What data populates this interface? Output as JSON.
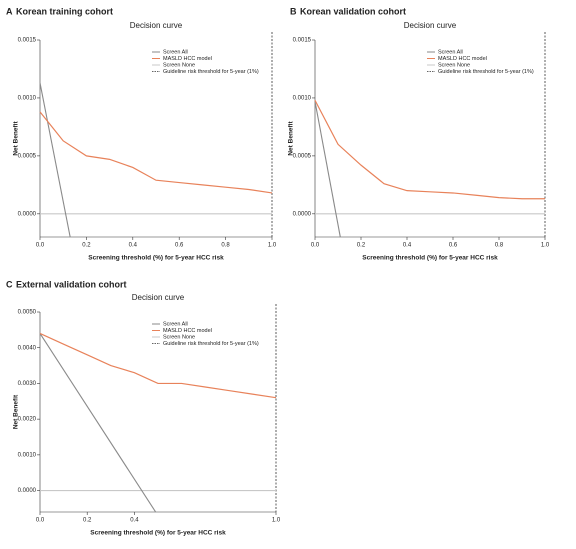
{
  "chart_data": [
    {
      "type": "line",
      "panel": "A",
      "title": "Korean training cohort",
      "subtitle": "Decision curve",
      "x_label": "Screening threshold (%) for 5-year HCC risk",
      "y_label": "Net Benefit",
      "xlim": [
        0,
        1
      ],
      "ylim": [
        -0.0002,
        0.0015
      ],
      "xticks": [
        {
          "value": 0,
          "label": "0.0"
        },
        0.2,
        0.4,
        0.6,
        0.8,
        {
          "value": 1,
          "label": "1.0"
        }
      ],
      "yticks": [
        {
          "value": 0,
          "label": "0.0000"
        },
        {
          "value": 0.0005,
          "label": "0.0005"
        },
        {
          "value": 0.001,
          "label": "0.0010"
        },
        {
          "value": 0.0015,
          "label": "0.0015"
        }
      ],
      "series": [
        {
          "name": "Screen All",
          "color": "#8a8a8a",
          "x": [
            0,
            0.13
          ],
          "values": [
            0.00113,
            -0.0002
          ]
        },
        {
          "name": "MASLD HCC model",
          "color": "#e8825a",
          "x": [
            0,
            0.1,
            0.2,
            0.3,
            0.4,
            0.5,
            0.6,
            0.7,
            0.8,
            0.9,
            1
          ],
          "values": [
            0.00088,
            0.00063,
            0.0005,
            0.00047,
            0.0004,
            0.00029,
            0.00027,
            0.00025,
            0.00023,
            0.00021,
            0.00018
          ]
        },
        {
          "name": "Screen None",
          "color": "#c8c8c8",
          "x": [
            0,
            1
          ],
          "values": [
            0,
            0
          ]
        }
      ],
      "reference_line": {
        "name": "Guideline risk threshold for 5-year (1%)",
        "x": 1,
        "color": "#333333"
      }
    },
    {
      "type": "line",
      "panel": "B",
      "title": "Korean validation cohort",
      "subtitle": "Decision curve",
      "x_label": "Screening threshold (%) for 5-year HCC risk",
      "y_label": "Net Benefit",
      "xlim": [
        0,
        1
      ],
      "ylim": [
        -0.0002,
        0.0015
      ],
      "xticks": [
        {
          "value": 0,
          "label": "0.0"
        },
        0.2,
        0.4,
        0.6,
        0.8,
        {
          "value": 1,
          "label": "1.0"
        }
      ],
      "yticks": [
        {
          "value": 0,
          "label": "0.0000"
        },
        {
          "value": 0.0005,
          "label": "0.0005"
        },
        {
          "value": 0.001,
          "label": "0.0010"
        },
        {
          "value": 0.0015,
          "label": "0.0015"
        }
      ],
      "series": [
        {
          "name": "Screen All",
          "color": "#8a8a8a",
          "x": [
            0,
            0.11
          ],
          "values": [
            0.00097,
            -0.0002
          ]
        },
        {
          "name": "MASLD HCC model",
          "color": "#e8825a",
          "x": [
            0,
            0.1,
            0.2,
            0.3,
            0.4,
            0.5,
            0.6,
            0.7,
            0.8,
            0.9,
            1
          ],
          "values": [
            0.00098,
            0.0006,
            0.00042,
            0.00026,
            0.0002,
            0.00019,
            0.00018,
            0.00016,
            0.00014,
            0.00013,
            0.00013
          ]
        },
        {
          "name": "Screen None",
          "color": "#c8c8c8",
          "x": [
            0,
            1
          ],
          "values": [
            0,
            0
          ]
        }
      ],
      "reference_line": {
        "name": "Guideline risk threshold for 5-year (1%)",
        "x": 1,
        "color": "#333333"
      }
    },
    {
      "type": "line",
      "panel": "C",
      "title": "External validation cohort",
      "subtitle": "Decision curve",
      "x_label": "Screening threshold (%) for 5-year HCC risk",
      "y_label": "Net Benefit",
      "xlim": [
        0,
        1
      ],
      "ylim": [
        -0.0006,
        0.005
      ],
      "xticks": [
        {
          "value": 0,
          "label": "0.0"
        },
        0.2,
        0.4,
        {
          "value": 1,
          "label": "1.0"
        }
      ],
      "yticks": [
        {
          "value": 0,
          "label": "0.0000"
        },
        {
          "value": 0.001,
          "label": "0.0010"
        },
        {
          "value": 0.002,
          "label": "0.0020"
        },
        {
          "value": 0.003,
          "label": "0.0030"
        },
        {
          "value": 0.004,
          "label": "0.0040"
        },
        {
          "value": 0.005,
          "label": "0.0050"
        }
      ],
      "series": [
        {
          "name": "Screen All",
          "color": "#8a8a8a",
          "x": [
            0,
            0.49
          ],
          "values": [
            0.0044,
            -0.0006
          ]
        },
        {
          "name": "MASLD HCC model",
          "color": "#e8825a",
          "x": [
            0,
            0.1,
            0.2,
            0.3,
            0.4,
            0.5,
            0.6,
            0.7,
            0.8,
            0.9,
            1
          ],
          "values": [
            0.0044,
            0.0041,
            0.0038,
            0.0035,
            0.0033,
            0.003,
            0.003,
            0.0029,
            0.0028,
            0.0027,
            0.0026
          ]
        },
        {
          "name": "Screen None",
          "color": "#c8c8c8",
          "x": [
            0,
            1
          ],
          "values": [
            0,
            0
          ]
        }
      ],
      "reference_line": {
        "name": "Guideline risk threshold for 5-year (1%)",
        "x": 1,
        "color": "#333333"
      }
    }
  ]
}
